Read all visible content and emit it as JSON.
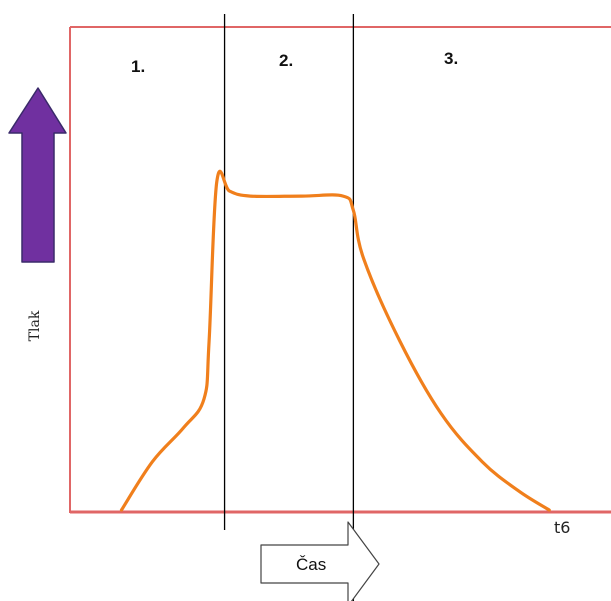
{
  "chart_data": {
    "type": "line",
    "title": "",
    "xlabel": "Čas",
    "ylabel": "Tlak",
    "x_tick_labels": [
      "t6"
    ],
    "phases": [
      {
        "label": "1.",
        "x_end": 0.3
      },
      {
        "label": "2.",
        "x_end": 0.55
      },
      {
        "label": "3."
      }
    ],
    "series": [
      {
        "color": "#f07f1c",
        "x": [
          0.1,
          0.16,
          0.22,
          0.26,
          0.27,
          0.285,
          0.31,
          0.35,
          0.45,
          0.53,
          0.55,
          0.57,
          0.64,
          0.72,
          0.8,
          0.87,
          0.93
        ],
        "y": [
          0,
          0.1,
          0.17,
          0.23,
          0.35,
          0.68,
          0.66,
          0.65,
          0.65,
          0.65,
          0.62,
          0.52,
          0.35,
          0.2,
          0.1,
          0.04,
          0
        ]
      }
    ],
    "xlim": [
      0,
      1.05
    ],
    "ylim": [
      0,
      1
    ],
    "grid": false,
    "colors": {
      "frame": "#e06666",
      "curve": "#f07f1c",
      "arrow_fill": "#7030a0",
      "arrow_stroke": "#3a2a6a",
      "divider": "#000000"
    },
    "icons": [
      "up-arrow-icon",
      "right-arrow-icon"
    ]
  }
}
